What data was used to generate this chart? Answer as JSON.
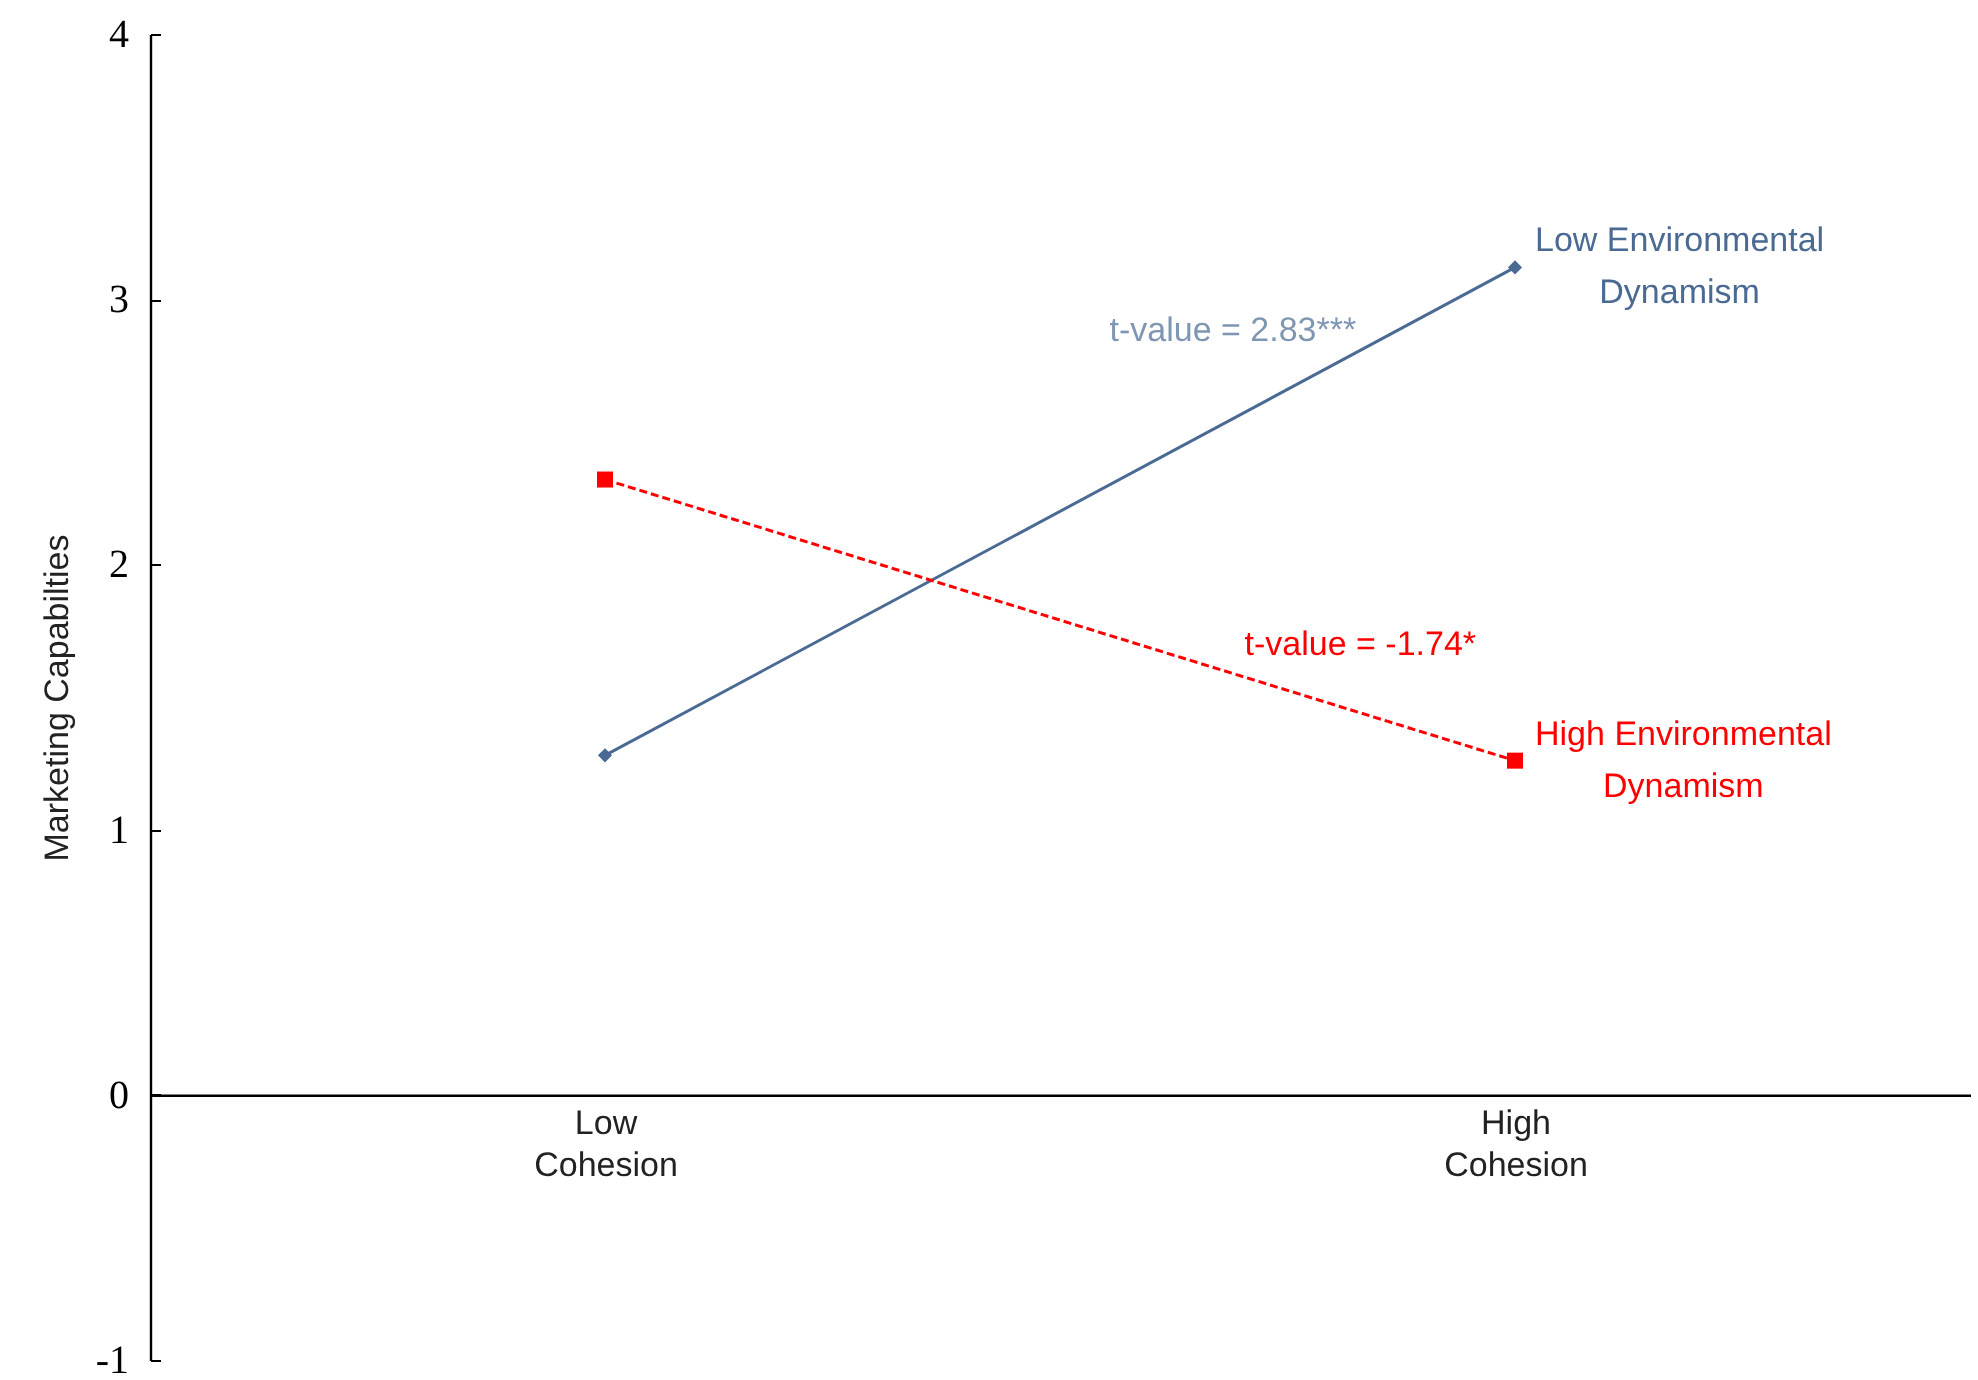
{
  "chart_data": {
    "type": "line",
    "ylabel": "Marketing Capabilties",
    "categories": [
      "Low Cohesion",
      "High Cohesion"
    ],
    "series": [
      {
        "name": "Low Environmental Dynamism",
        "color": "#4a6a94",
        "values": [
          1.28,
          3.12
        ],
        "marker": "diamond",
        "line_style": "solid"
      },
      {
        "name": "High Environmental Dynamism",
        "color": "#ff0000",
        "values": [
          2.32,
          1.26
        ],
        "marker": "square",
        "line_style": "dashed"
      }
    ],
    "ylim": [
      -1,
      4
    ],
    "yticks": [
      -1,
      0,
      1,
      2,
      3,
      4
    ],
    "annotations": [
      "t-value = 2.83***",
      "t-value = -1.74*"
    ]
  }
}
